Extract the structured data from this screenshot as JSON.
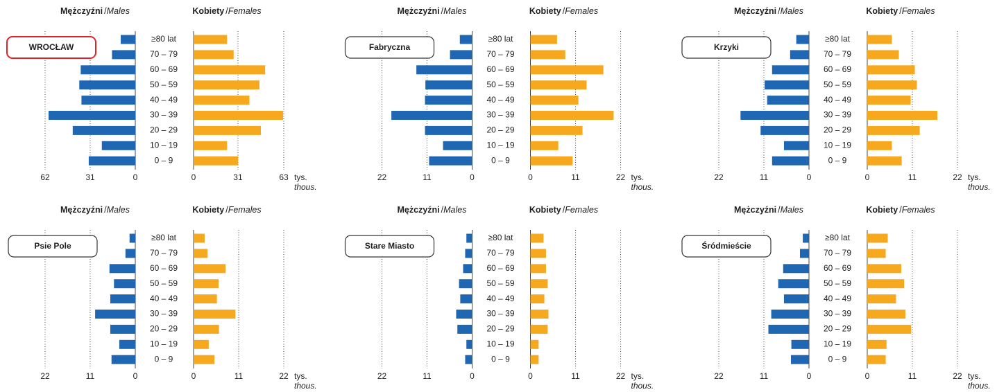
{
  "chart_data": [
    {
      "type": "pyramid",
      "title": "WROCŁAW",
      "highlight": true,
      "separator": "/",
      "unit": "tys.",
      "unit_en": "thous.",
      "categories": [
        "≥80 lat",
        "70 – 79",
        "60 – 69",
        "50 – 59",
        "40 – 49",
        "30 – 39",
        "20 – 29",
        "10 – 19",
        "0 – 9"
      ],
      "male_xlim": [
        0,
        62
      ],
      "male_xticks": [
        62,
        31,
        0
      ],
      "female_xlim": [
        0,
        63
      ],
      "female_xticks": [
        0,
        31,
        63
      ],
      "series": [
        {
          "name": "Mężczyźni",
          "name_en": "Males",
          "color": "#1f66b3",
          "values": [
            10,
            16,
            37.5,
            38.5,
            37,
            59.6,
            43,
            23,
            32
          ]
        },
        {
          "name": "Kobiety",
          "name_en": "Females",
          "color": "#f6a81f",
          "values": [
            23.4,
            28,
            50,
            46,
            39,
            62.5,
            47,
            23.4,
            31
          ]
        }
      ]
    },
    {
      "type": "pyramid",
      "title": "Fabryczna",
      "highlight": false,
      "separator": "/",
      "unit": "tys.",
      "unit_en": "thous.",
      "categories": [
        "≥80 lat",
        "70 – 79",
        "60 – 69",
        "50 – 59",
        "40 – 49",
        "30 – 39",
        "20 – 29",
        "10 – 19",
        "0 – 9"
      ],
      "male_xlim": [
        0,
        22
      ],
      "male_xticks": [
        22,
        11,
        0
      ],
      "female_xlim": [
        0,
        22
      ],
      "female_xticks": [
        0,
        11,
        22
      ],
      "series": [
        {
          "name": "Mężczyźni",
          "name_en": "Males",
          "color": "#1f66b3",
          "values": [
            3,
            5.4,
            13.6,
            11.4,
            11.5,
            19.7,
            11.5,
            7.1,
            10.5
          ]
        },
        {
          "name": "Kobiety",
          "name_en": "Females",
          "color": "#f6a81f",
          "values": [
            6.5,
            8.5,
            17.8,
            13.7,
            11.7,
            20.3,
            12.7,
            6.8,
            10.3
          ]
        }
      ]
    },
    {
      "type": "pyramid",
      "title": "Krzyki",
      "highlight": false,
      "separator": "/",
      "unit": "tys.",
      "unit_en": "thous.",
      "categories": [
        "≥80 lat",
        "70 – 79",
        "60 – 69",
        "50 – 59",
        "40 – 49",
        "30 – 39",
        "20 – 29",
        "10 – 19",
        "0 – 9"
      ],
      "male_xlim": [
        0,
        22
      ],
      "male_xticks": [
        22,
        11,
        0
      ],
      "female_xlim": [
        0,
        22
      ],
      "female_xticks": [
        0,
        11,
        22
      ],
      "series": [
        {
          "name": "Mężczyźni",
          "name_en": "Males",
          "color": "#1f66b3",
          "values": [
            3.1,
            4.6,
            9,
            10.8,
            10.2,
            16.7,
            11.8,
            6.1,
            9
          ]
        },
        {
          "name": "Kobiety",
          "name_en": "Females",
          "color": "#f6a81f",
          "values": [
            6,
            7.7,
            11.6,
            12.1,
            10.6,
            17.1,
            12.8,
            6,
            8.4
          ]
        }
      ]
    },
    {
      "type": "pyramid",
      "title": "Psie Pole",
      "highlight": false,
      "separator": "/",
      "unit": "tys.",
      "unit_en": "thous.",
      "categories": [
        "≥80 lat",
        "70 – 79",
        "60 – 69",
        "50 – 59",
        "40 – 49",
        "30 – 39",
        "20 – 29",
        "10 – 19",
        "0 – 9"
      ],
      "male_xlim": [
        0,
        22
      ],
      "male_xticks": [
        22,
        11,
        0
      ],
      "female_xlim": [
        0,
        22
      ],
      "female_xticks": [
        0,
        11,
        22
      ],
      "series": [
        {
          "name": "Mężczyźni",
          "name_en": "Males",
          "color": "#1f66b3",
          "values": [
            1.4,
            2.4,
            6.3,
            5.2,
            6.1,
            9.8,
            6.1,
            3.9,
            5.8
          ]
        },
        {
          "name": "Kobiety",
          "name_en": "Females",
          "color": "#f6a81f",
          "values": [
            2.7,
            3.4,
            7.8,
            6.1,
            5.7,
            10.2,
            6.2,
            3.7,
            5.1
          ]
        }
      ]
    },
    {
      "type": "pyramid",
      "title": "Stare Miasto",
      "highlight": false,
      "separator": "/",
      "unit": "tys.",
      "unit_en": "thous.",
      "categories": [
        "≥80 lat",
        "70 – 79",
        "60 – 69",
        "50 – 59",
        "40 – 49",
        "30 – 39",
        "20 – 29",
        "10 – 19",
        "0 – 9"
      ],
      "male_xlim": [
        0,
        22
      ],
      "male_xticks": [
        22,
        11,
        0
      ],
      "female_xlim": [
        0,
        22
      ],
      "female_xticks": [
        0,
        11,
        22
      ],
      "series": [
        {
          "name": "Mężczyźni",
          "name_en": "Males",
          "color": "#1f66b3",
          "values": [
            1.4,
            1.7,
            2.2,
            3.2,
            2.9,
            3.9,
            3.6,
            1.4,
            1.7
          ]
        },
        {
          "name": "Kobiety",
          "name_en": "Females",
          "color": "#f6a81f",
          "values": [
            3.2,
            3.8,
            3.8,
            4.2,
            3.4,
            4.4,
            4.2,
            2,
            2
          ]
        }
      ]
    },
    {
      "type": "pyramid",
      "title": "Śródmieście",
      "highlight": false,
      "separator": "/",
      "unit": "tys.",
      "unit_en": "thous.",
      "categories": [
        "≥80 lat",
        "70 – 79",
        "60 – 69",
        "50 – 59",
        "40 – 49",
        "30 – 39",
        "20 – 29",
        "10 – 19",
        "0 – 9"
      ],
      "male_xlim": [
        0,
        22
      ],
      "male_xticks": [
        22,
        11,
        0
      ],
      "female_xlim": [
        0,
        22
      ],
      "female_xticks": [
        0,
        11,
        22
      ],
      "series": [
        {
          "name": "Mężczyźni",
          "name_en": "Males",
          "color": "#1f66b3",
          "values": [
            1.5,
            2.2,
            6.3,
            7.5,
            6.1,
            9.2,
            9.9,
            4.3,
            4.4
          ]
        },
        {
          "name": "Kobiety",
          "name_en": "Females",
          "color": "#f6a81f",
          "values": [
            5,
            4.5,
            8.3,
            9,
            7,
            9.3,
            10.7,
            4.7,
            4.5
          ]
        }
      ]
    }
  ]
}
